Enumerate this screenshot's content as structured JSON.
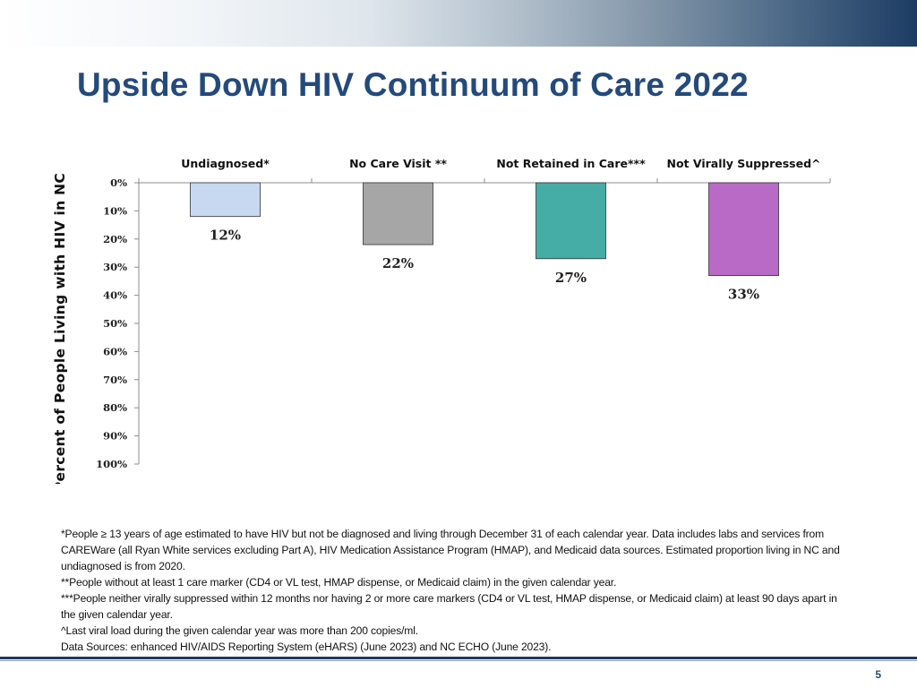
{
  "slide": {
    "title": "Upside Down HIV Continuum of Care 2022",
    "page_number": "5"
  },
  "chart_data": {
    "type": "bar",
    "orientation": "inverted-vertical",
    "title": "",
    "xlabel": "",
    "ylabel": "Percent of People Living with HIV in NC",
    "ylim": [
      0,
      100
    ],
    "y_ticks": [
      "0%",
      "10%",
      "20%",
      "30%",
      "40%",
      "50%",
      "60%",
      "70%",
      "80%",
      "90%",
      "100%"
    ],
    "categories": [
      "Undiagnosed*",
      "No Care Visit **",
      "Not Retained in Care***",
      "Not Virally Suppressed^"
    ],
    "values": [
      12,
      22,
      27,
      33
    ],
    "data_labels": [
      "12%",
      "22%",
      "27%",
      "33%"
    ],
    "colors": [
      "#c6d9f0",
      "#a6a6a6",
      "#45aca6",
      "#b96ac7"
    ]
  },
  "footnotes": [
    "*People ≥ 13 years of age estimated to have HIV but not be diagnosed and living through December 31 of each calendar year. Data includes labs and services from CAREWare (all Ryan White services excluding Part A), HIV Medication Assistance Program (HMAP), and Medicaid data sources. Estimated proportion living in NC and undiagnosed is from 2020.",
    "**People without at least 1 care marker (CD4 or VL test, HMAP dispense, or Medicaid claim) in the given calendar year.",
    "***People neither virally suppressed within 12 months nor having 2 or more care markers (CD4 or VL test, HMAP dispense, or Medicaid claim) at least 90 days apart in the given calendar year.",
    "^Last viral load during the given calendar year was more than 200 copies/ml.",
    "Data Sources: enhanced HIV/AIDS Reporting System (eHARS) (June 2023) and NC ECHO (June 2023)."
  ]
}
